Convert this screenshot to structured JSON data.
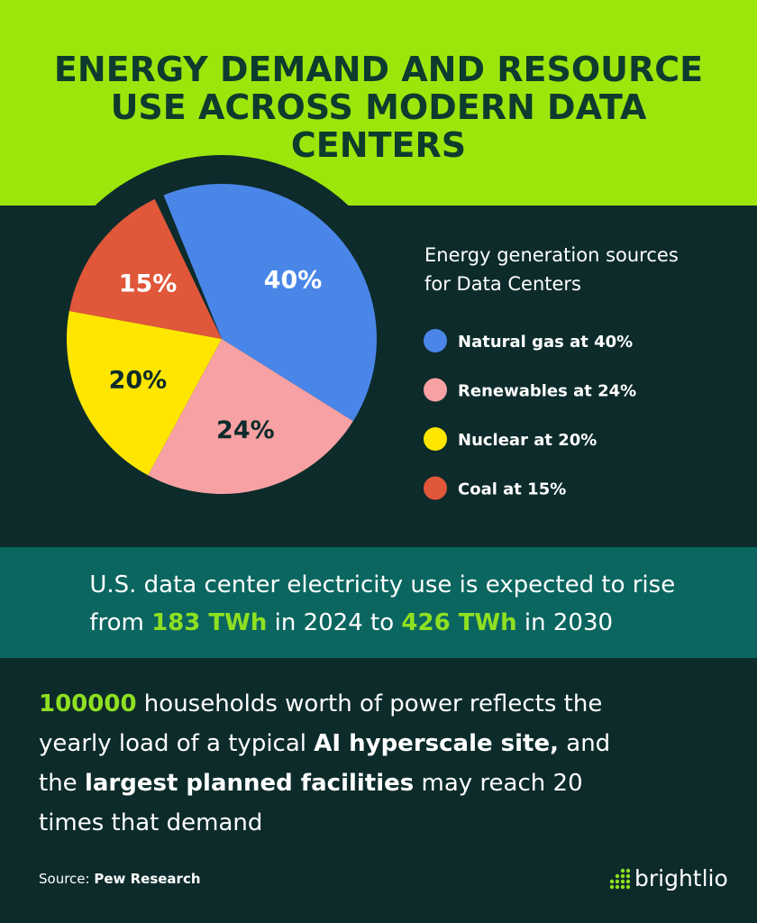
{
  "chart_data": {
    "type": "pie",
    "title": [
      "ENERGY DEMAND AND RESOURCE",
      "USE ACROSS MODERN DATA",
      "CENTERS"
    ],
    "legend_title": [
      "Energy generation sources",
      "for Data Centers"
    ],
    "categories": [
      "Natural gas at 40%",
      "Renewables at 24%",
      "Nuclear at 20%",
      "Coal at 15%"
    ],
    "values": [
      40,
      24,
      20,
      15
    ],
    "value_labels": [
      "40%",
      "24%",
      "20%",
      "15%"
    ],
    "colors": [
      "#4a86e8",
      "#f7a1a4",
      "#ffe600",
      "#e0573a"
    ]
  },
  "stat": {
    "lines": [
      [
        "U.S. data center electricity use is expected to rise"
      ],
      [
        "from ",
        "183 TWh",
        " in 2024 to ",
        "426 TWh",
        " in 2030"
      ]
    ]
  },
  "note": {
    "lines": [
      [
        "100000",
        " households worth of power reflects the"
      ],
      [
        "yearly load of a typical ",
        "AI hyperscale site,",
        " and"
      ],
      [
        "the ",
        "largest planned facilities",
        " may reach 20"
      ],
      [
        "times that demand"
      ]
    ]
  },
  "source": {
    "label": "Source:",
    "name": "Pew Research"
  },
  "brand": "brightlio"
}
